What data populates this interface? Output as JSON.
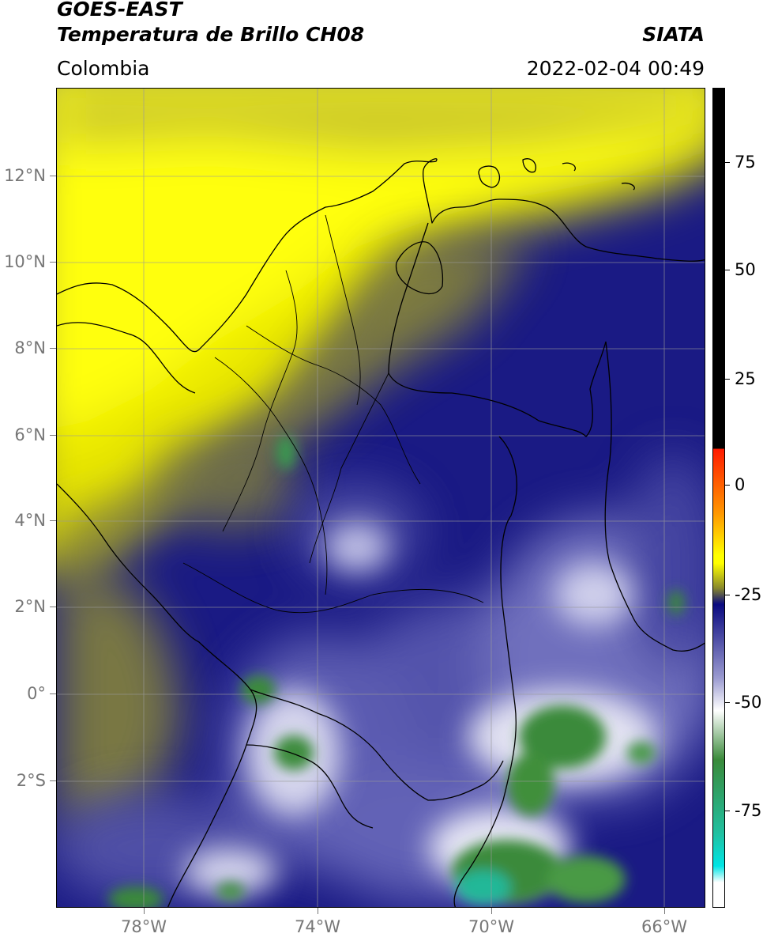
{
  "header": {
    "satellite": "GOES-EAST",
    "product": "Temperatura de Brillo CH08",
    "organization": "SIATA",
    "region": "Colombia",
    "datetime": "2022-02-04 00:49"
  },
  "axes": {
    "lat_labels": [
      "12°N",
      "10°N",
      "8°N",
      "6°N",
      "4°N",
      "2°N",
      "0°",
      "2°S"
    ],
    "lon_labels": [
      "78°W",
      "74°W",
      "70°W",
      "66°W"
    ]
  },
  "colorbar": {
    "tick_labels": [
      "75",
      "50",
      "25",
      "0",
      "-25",
      "-50",
      "-75"
    ],
    "ticks": [
      75,
      50,
      25,
      0,
      -25,
      -50,
      -75
    ],
    "range": [
      -93,
      90
    ],
    "colors": {
      "warm_black": "#000000",
      "red": "#ff1a00",
      "orange": "#ff9900",
      "yellow": "#ffff00",
      "olive": "#8a8a2a",
      "navy": "#0a0a80",
      "lavender": "#9a9ad0",
      "white": "#ffffff",
      "green": "#3a8a3a",
      "teal": "#20c0a0",
      "cyan": "#00e5e5"
    }
  }
}
